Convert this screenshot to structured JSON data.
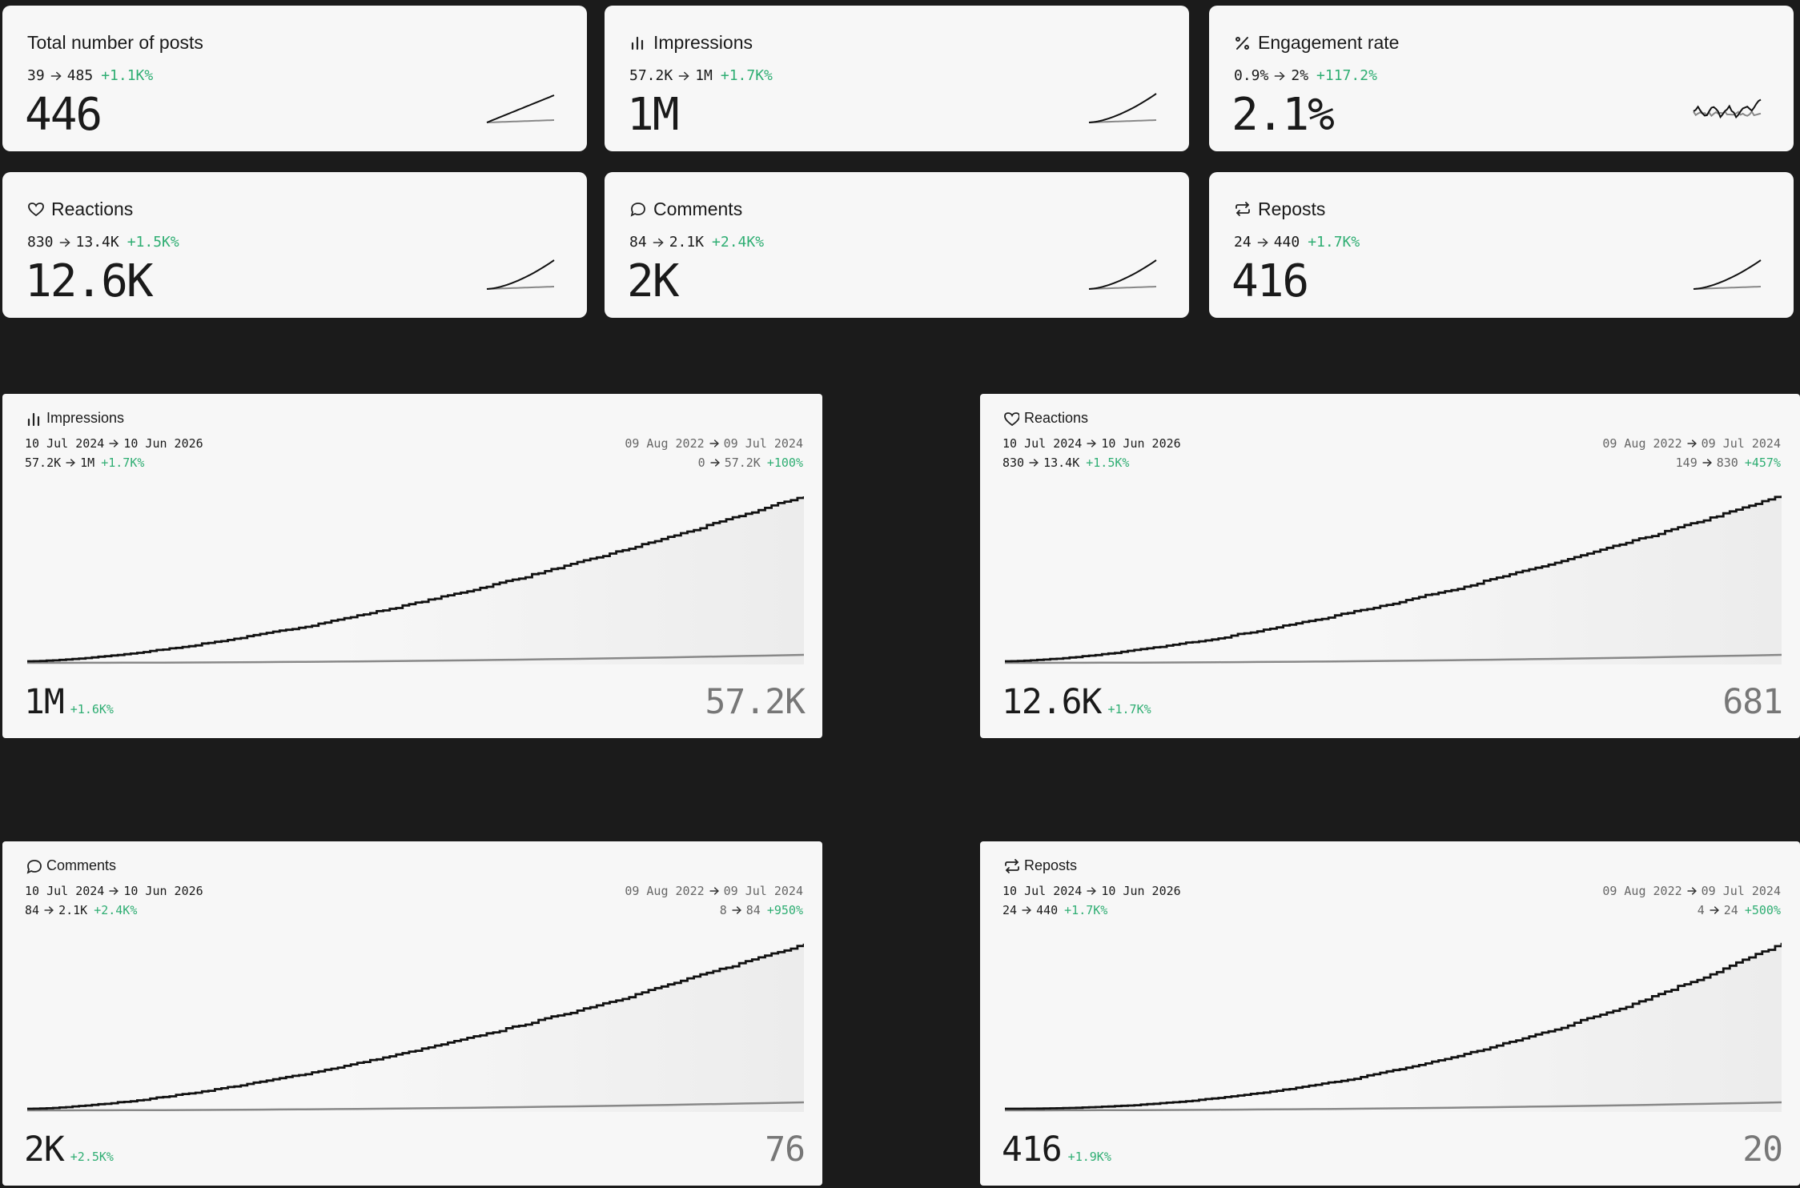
{
  "stat_cards": [
    {
      "title": "Total number of posts",
      "from": "39",
      "to": "485",
      "change": "+1.1K%",
      "value": "446"
    },
    {
      "title": "Impressions",
      "from": "57.2K",
      "to": "1M",
      "change": "+1.7K%",
      "value": "1M"
    },
    {
      "title": "Engagement rate",
      "from": "0.9%",
      "to": "2%",
      "change": "+117.2%",
      "value": "2.1%"
    },
    {
      "title": "Reactions",
      "from": "830",
      "to": "13.4K",
      "change": "+1.5K%",
      "value": "12.6K"
    },
    {
      "title": "Comments",
      "from": "84",
      "to": "2.1K",
      "change": "+2.4K%",
      "value": "2K"
    },
    {
      "title": "Reposts",
      "from": "24",
      "to": "440",
      "change": "+1.7K%",
      "value": "416"
    }
  ],
  "chart_cards": [
    {
      "title": "Impressions",
      "current_start": "10 Jul 2024",
      "current_end": "10 Jun 2026",
      "current_from": "57.2K",
      "current_to": "1M",
      "current_change": "+1.7K%",
      "previous_start": "09 Aug 2022",
      "previous_end": "09 Jul 2024",
      "previous_from": "0",
      "previous_to": "57.2K",
      "previous_change": "+100%",
      "total": "1M",
      "total_change": "+1.6K%",
      "previous_total": "57.2K"
    },
    {
      "title": "Reactions",
      "current_start": "10 Jul 2024",
      "current_end": "10 Jun 2026",
      "current_from": "830",
      "current_to": "13.4K",
      "current_change": "+1.5K%",
      "previous_start": "09 Aug 2022",
      "previous_end": "09 Jul 2024",
      "previous_from": "149",
      "previous_to": "830",
      "previous_change": "+457%",
      "total": "12.6K",
      "total_change": "+1.7K%",
      "previous_total": "681"
    },
    {
      "title": "Comments",
      "current_start": "10 Jul 2024",
      "current_end": "10 Jun 2026",
      "current_from": "84",
      "current_to": "2.1K",
      "current_change": "+2.4K%",
      "previous_start": "09 Aug 2022",
      "previous_end": "09 Jul 2024",
      "previous_from": "8",
      "previous_to": "84",
      "previous_change": "+950%",
      "total": "2K",
      "total_change": "+2.5K%",
      "previous_total": "76"
    },
    {
      "title": "Reposts",
      "current_start": "10 Jul 2024",
      "current_end": "10 Jun 2026",
      "current_from": "24",
      "current_to": "440",
      "current_change": "+1.7K%",
      "previous_start": "09 Aug 2022",
      "previous_end": "09 Jul 2024",
      "previous_from": "4",
      "previous_to": "24",
      "previous_change": "+500%",
      "total": "416",
      "total_change": "+1.9K%",
      "previous_total": "20"
    }
  ]
}
